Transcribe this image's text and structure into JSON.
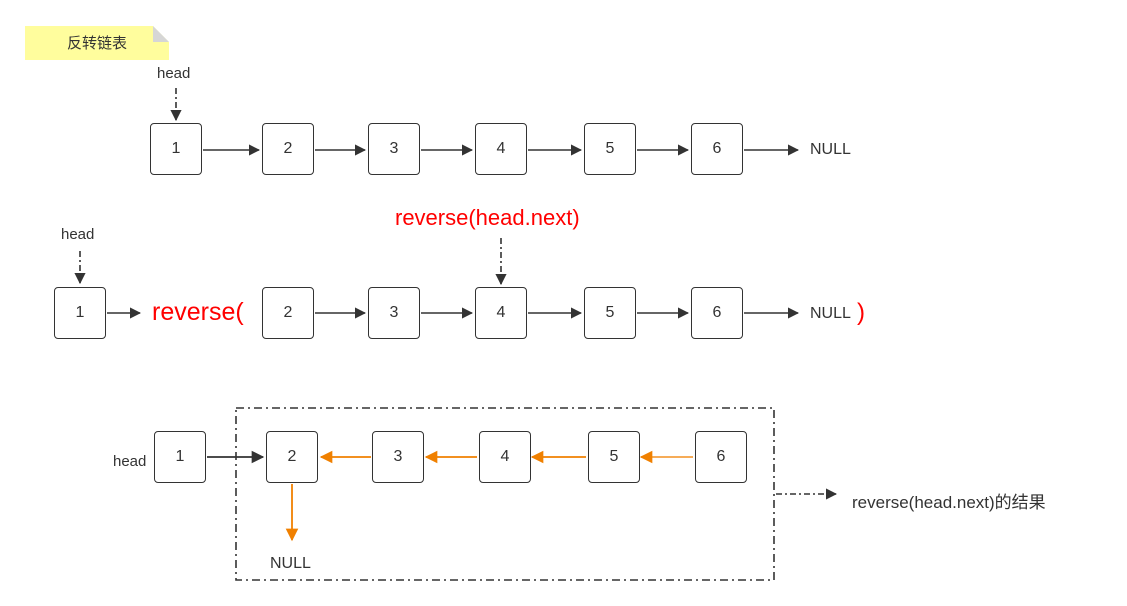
{
  "title_note": "反转链表",
  "colors": {
    "ink": "#333333",
    "accent": "#ff0000",
    "reversed_link": "#f08000",
    "note_bg": "#fffd9d"
  },
  "row1": {
    "head": "head",
    "nodes": [
      "1",
      "2",
      "3",
      "4",
      "5",
      "6"
    ],
    "null": "NULL"
  },
  "row2": {
    "head": "head",
    "first": "1",
    "call_open": "reverse(",
    "nodes": [
      "2",
      "3",
      "4",
      "5",
      "6"
    ],
    "null": "NULL",
    "call_close": ")",
    "pointer_label": "reverse(head.next)"
  },
  "row3": {
    "head": "head",
    "nodes": [
      "1",
      "2",
      "3",
      "4",
      "5",
      "6"
    ],
    "null": "NULL",
    "result_label": "reverse(head.next)的结果"
  }
}
